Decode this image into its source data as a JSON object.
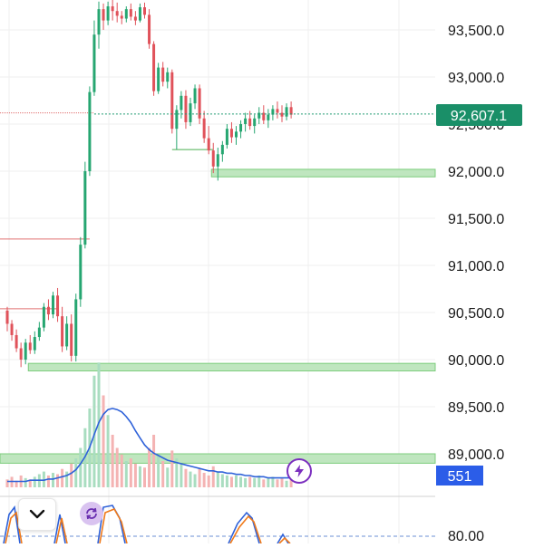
{
  "chart_data": {
    "type": "candlestick",
    "price_axis": {
      "ticks": [
        93500,
        93000,
        92500,
        92000,
        91500,
        91000,
        90500,
        90000,
        89500,
        89000
      ],
      "tick_labels": [
        "93,500.0",
        "93,000.0",
        "92,500.0",
        "92,000.0",
        "91,500.0",
        "91,000.0",
        "90,500.0",
        "90,000.0",
        "89,500.0",
        "89,000.0"
      ],
      "range": [
        88600,
        93800
      ]
    },
    "oscillator_axis": {
      "ticks": [
        80
      ],
      "tick_labels": [
        "80.00"
      ]
    },
    "last_price": 92607.1,
    "last_price_label": "92,607.1",
    "volume_label": "551",
    "zones": [
      {
        "low": 91940,
        "high": 92020
      },
      {
        "low": 89880,
        "high": 89960
      },
      {
        "low": 88900,
        "high": 89000
      }
    ],
    "levels": [
      {
        "price": 92600
      },
      {
        "price": 91280
      },
      {
        "price": 90540
      },
      {
        "price": 92230
      }
    ],
    "candles": [
      [
        90520,
        90560,
        90300,
        90380
      ],
      [
        90380,
        90420,
        90200,
        90260
      ],
      [
        90260,
        90320,
        90080,
        90120
      ],
      [
        90120,
        90180,
        89920,
        90000
      ],
      [
        90000,
        90220,
        89950,
        90180
      ],
      [
        90180,
        90260,
        90060,
        90100
      ],
      [
        90100,
        90300,
        90060,
        90240
      ],
      [
        90240,
        90400,
        90200,
        90340
      ],
      [
        90340,
        90600,
        90300,
        90560
      ],
      [
        90560,
        90640,
        90420,
        90480
      ],
      [
        90480,
        90720,
        90440,
        90680
      ],
      [
        90680,
        90760,
        90400,
        90460
      ],
      [
        90460,
        90560,
        90080,
        90140
      ],
      [
        90140,
        90460,
        90100,
        90380
      ],
      [
        90380,
        90480,
        89980,
        90040
      ],
      [
        90040,
        90700,
        89980,
        90640
      ],
      [
        90640,
        91300,
        90560,
        91220
      ],
      [
        91220,
        92100,
        91180,
        92000
      ],
      [
        92000,
        92900,
        91950,
        92840
      ],
      [
        92840,
        93600,
        92800,
        93450
      ],
      [
        93450,
        93800,
        93300,
        93720
      ],
      [
        93720,
        93780,
        93500,
        93600
      ],
      [
        93600,
        93800,
        93550,
        93750
      ],
      [
        93750,
        93820,
        93600,
        93700
      ],
      [
        93700,
        93790,
        93580,
        93650
      ],
      [
        93650,
        93700,
        93560,
        93620
      ],
      [
        93620,
        93750,
        93580,
        93720
      ],
      [
        93720,
        93780,
        93600,
        93640
      ],
      [
        93640,
        93700,
        93550,
        93600
      ],
      [
        93600,
        93780,
        93580,
        93740
      ],
      [
        93740,
        93790,
        93620,
        93660
      ],
      [
        93660,
        93720,
        93300,
        93350
      ],
      [
        93350,
        93380,
        92800,
        92850
      ],
      [
        92850,
        93150,
        92820,
        93100
      ],
      [
        93100,
        93160,
        92900,
        92950
      ],
      [
        92950,
        93100,
        92880,
        93050
      ],
      [
        93050,
        93080,
        92400,
        92450
      ],
      [
        92450,
        92700,
        92230,
        92650
      ],
      [
        92650,
        92850,
        92560,
        92800
      ],
      [
        92800,
        92860,
        92450,
        92520
      ],
      [
        92520,
        92780,
        92480,
        92720
      ],
      [
        92720,
        92920,
        92660,
        92880
      ],
      [
        92880,
        92920,
        92500,
        92560
      ],
      [
        92560,
        92640,
        92300,
        92350
      ],
      [
        92350,
        92480,
        92180,
        92220
      ],
      [
        92220,
        92300,
        91980,
        92050
      ],
      [
        92050,
        92250,
        91900,
        92180
      ],
      [
        92180,
        92320,
        92100,
        92280
      ],
      [
        92280,
        92500,
        92240,
        92450
      ],
      [
        92450,
        92520,
        92300,
        92360
      ],
      [
        92360,
        92480,
        92280,
        92420
      ],
      [
        92420,
        92540,
        92350,
        92500
      ],
      [
        92500,
        92620,
        92420,
        92560
      ],
      [
        92560,
        92640,
        92440,
        92480
      ],
      [
        92480,
        92600,
        92400,
        92560
      ],
      [
        92560,
        92680,
        92500,
        92620
      ],
      [
        92620,
        92700,
        92500,
        92540
      ],
      [
        92540,
        92660,
        92460,
        92600
      ],
      [
        92600,
        92700,
        92540,
        92660
      ],
      [
        92660,
        92740,
        92560,
        92620
      ],
      [
        92620,
        92700,
        92520,
        92580
      ],
      [
        92580,
        92720,
        92540,
        92680
      ],
      [
        92680,
        92740,
        92560,
        92600
      ]
    ],
    "volume": [
      6,
      8,
      5,
      9,
      7,
      6,
      8,
      10,
      12,
      9,
      11,
      10,
      14,
      12,
      18,
      22,
      30,
      45,
      60,
      85,
      95,
      70,
      55,
      40,
      30,
      25,
      20,
      22,
      18,
      16,
      15,
      30,
      40,
      25,
      20,
      15,
      28,
      22,
      18,
      14,
      12,
      10,
      14,
      11,
      9,
      16,
      12,
      10,
      9,
      8,
      9,
      8,
      7,
      8,
      7,
      9,
      6,
      7,
      8,
      6,
      7,
      5,
      6
    ],
    "volume_ma": [
      5,
      5,
      5,
      5,
      5,
      6,
      6,
      6,
      6,
      7,
      7,
      8,
      9,
      10,
      12,
      15,
      20,
      26,
      34,
      45,
      55,
      62,
      66,
      67,
      66,
      64,
      60,
      55,
      48,
      42,
      36,
      32,
      29,
      27,
      25,
      23,
      22,
      21,
      20,
      19,
      18,
      17,
      16,
      15,
      14,
      14,
      13,
      13,
      12,
      12,
      11,
      11,
      10,
      10,
      9,
      9,
      9,
      8,
      8,
      8,
      8,
      8,
      8
    ]
  }
}
